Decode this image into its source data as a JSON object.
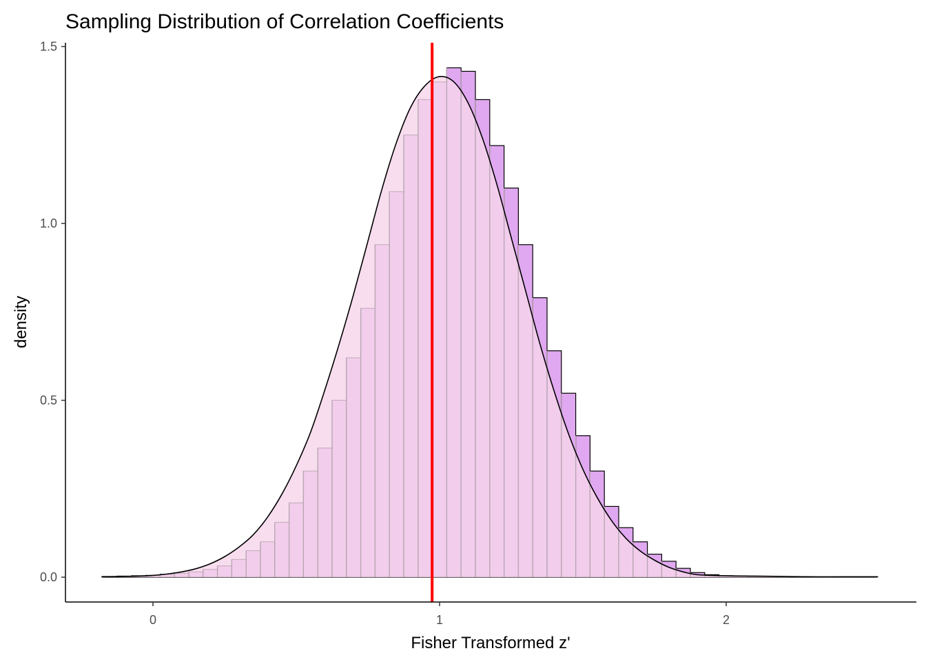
{
  "chart_data": {
    "type": "bar",
    "title": "Sampling Distribution of Correlation Coefficients",
    "xlabel": "Fisher Transformed z'",
    "ylabel": "density",
    "xlim": [
      -0.18,
      2.53
    ],
    "ylim": [
      0,
      1.5
    ],
    "x_ticks": [
      {
        "value": 0,
        "label": "0"
      },
      {
        "value": 1,
        "label": "1"
      },
      {
        "value": 2,
        "label": "2"
      }
    ],
    "y_ticks": [
      {
        "value": 0,
        "label": "0.0"
      },
      {
        "value": 0.5,
        "label": "0.5"
      },
      {
        "value": 1,
        "label": "1.0"
      },
      {
        "value": 1.5,
        "label": "1.5"
      }
    ],
    "grid": false,
    "histogram": {
      "bin_start": -0.175,
      "bin_width": 0.05,
      "densities": [
        0.002,
        0.003,
        0.004,
        0.005,
        0.008,
        0.011,
        0.015,
        0.022,
        0.032,
        0.05,
        0.075,
        0.1,
        0.155,
        0.21,
        0.3,
        0.365,
        0.5,
        0.62,
        0.76,
        0.94,
        1.09,
        1.25,
        1.35,
        1.4,
        1.44,
        1.43,
        1.35,
        1.22,
        1.1,
        0.94,
        0.79,
        0.64,
        0.52,
        0.4,
        0.3,
        0.2,
        0.14,
        0.1,
        0.065,
        0.045,
        0.025,
        0.013,
        0.007,
        0.004,
        0.003,
        0.002,
        0.002,
        0.001,
        0.001,
        0.001,
        0.001,
        0.001,
        0.001,
        0.001
      ],
      "fill_color": "#e0a8f0",
      "border_color": "#000000"
    },
    "density_curve": {
      "color": "#000000",
      "area_fill": "#f5d5ea",
      "points": [
        [
          -0.18,
          0.001
        ],
        [
          -0.1,
          0.002
        ],
        [
          -0.05,
          0.003
        ],
        [
          0,
          0.005
        ],
        [
          0.05,
          0.009
        ],
        [
          0.1,
          0.015
        ],
        [
          0.15,
          0.024
        ],
        [
          0.2,
          0.038
        ],
        [
          0.25,
          0.058
        ],
        [
          0.3,
          0.085
        ],
        [
          0.35,
          0.12
        ],
        [
          0.4,
          0.17
        ],
        [
          0.45,
          0.235
        ],
        [
          0.5,
          0.315
        ],
        [
          0.55,
          0.41
        ],
        [
          0.6,
          0.53
        ],
        [
          0.65,
          0.66
        ],
        [
          0.7,
          0.8
        ],
        [
          0.75,
          0.95
        ],
        [
          0.8,
          1.1
        ],
        [
          0.85,
          1.23
        ],
        [
          0.9,
          1.33
        ],
        [
          0.95,
          1.39
        ],
        [
          1.0,
          1.415
        ],
        [
          1.05,
          1.4
        ],
        [
          1.1,
          1.34
        ],
        [
          1.15,
          1.24
        ],
        [
          1.2,
          1.11
        ],
        [
          1.25,
          0.96
        ],
        [
          1.3,
          0.81
        ],
        [
          1.35,
          0.66
        ],
        [
          1.4,
          0.525
        ],
        [
          1.45,
          0.405
        ],
        [
          1.5,
          0.305
        ],
        [
          1.55,
          0.225
        ],
        [
          1.6,
          0.16
        ],
        [
          1.65,
          0.11
        ],
        [
          1.7,
          0.074
        ],
        [
          1.75,
          0.048
        ],
        [
          1.8,
          0.028
        ],
        [
          1.85,
          0.015
        ],
        [
          1.9,
          0.007
        ],
        [
          2.0,
          0.004
        ],
        [
          2.1,
          0.003
        ],
        [
          2.2,
          0.002
        ],
        [
          2.3,
          0.001
        ],
        [
          2.4,
          0.001
        ],
        [
          2.53,
          0.001
        ]
      ]
    },
    "vline": {
      "x": 0.974,
      "color": "#ff0000"
    }
  }
}
